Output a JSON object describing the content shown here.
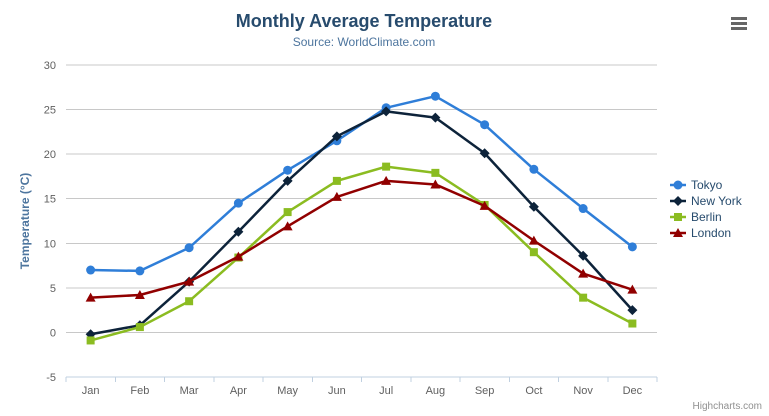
{
  "chart_data": {
    "type": "line",
    "title": "Monthly Average Temperature",
    "subtitle": "Source: WorldClimate.com",
    "xlabel": "",
    "ylabel": "Temperature (°C)",
    "ylim": [
      -5,
      30
    ],
    "y_ticks": [
      -5,
      0,
      5,
      10,
      15,
      20,
      25,
      30
    ],
    "grid": true,
    "legend_position": "right",
    "categories": [
      "Jan",
      "Feb",
      "Mar",
      "Apr",
      "May",
      "Jun",
      "Jul",
      "Aug",
      "Sep",
      "Oct",
      "Nov",
      "Dec"
    ],
    "series": [
      {
        "name": "Tokyo",
        "color": "#2f7ed8",
        "marker": "circle",
        "values": [
          7.0,
          6.9,
          9.5,
          14.5,
          18.2,
          21.5,
          25.2,
          26.5,
          23.3,
          18.3,
          13.9,
          9.6
        ]
      },
      {
        "name": "New York",
        "color": "#0d233a",
        "marker": "diamond",
        "values": [
          -0.2,
          0.8,
          5.7,
          11.3,
          17.0,
          22.0,
          24.8,
          24.1,
          20.1,
          14.1,
          8.6,
          2.5
        ]
      },
      {
        "name": "Berlin",
        "color": "#8bbc21",
        "marker": "square",
        "values": [
          -0.9,
          0.6,
          3.5,
          8.4,
          13.5,
          17.0,
          18.6,
          17.9,
          14.3,
          9.0,
          3.9,
          1.0
        ]
      },
      {
        "name": "London",
        "color": "#910000",
        "marker": "triangle",
        "values": [
          3.9,
          4.2,
          5.7,
          8.5,
          11.9,
          15.2,
          17.0,
          16.6,
          14.2,
          10.3,
          6.6,
          4.8
        ]
      }
    ],
    "credits": "Highcharts.com"
  },
  "export_menu": {
    "icon": "hamburger-icon"
  },
  "theme": {
    "title_color": "#274b6d",
    "subtitle_color": "#4d759e",
    "axis_title_color": "#4d759e",
    "axis_label_color": "#606060",
    "legend_text_color": "#274b6d",
    "grid_color": "#c8c8c8",
    "axis_line_color": "#c0d0e0",
    "credits_color": "#909090",
    "burger_color": "#666666",
    "background": "#ffffff"
  }
}
